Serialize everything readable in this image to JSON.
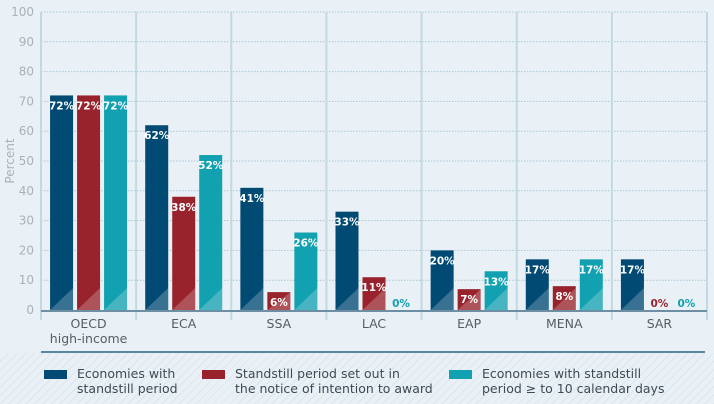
{
  "chart_data": {
    "type": "bar",
    "title": "",
    "xlabel": "",
    "ylabel": "Percent",
    "ylim": [
      0,
      100
    ],
    "yticks": [
      0,
      10,
      20,
      30,
      40,
      50,
      60,
      70,
      80,
      90,
      100
    ],
    "grid": true,
    "legend_position": "bottom",
    "categories": [
      "OECD\nhigh-income",
      "ECA",
      "SSA",
      "LAC",
      "EAP",
      "MENA",
      "SAR"
    ],
    "series": [
      {
        "name": "Economies with standstill period",
        "color": "#004a74",
        "label_color": "#ffffff",
        "values": [
          72,
          62,
          41,
          33,
          20,
          17,
          17
        ],
        "labels": [
          "72%",
          "62%",
          "41%",
          "33%",
          "20%",
          "17%",
          "17%"
        ]
      },
      {
        "name": "Standstill period set out in the notice of intention to award",
        "color": "#98232c",
        "label_color": "#98232c",
        "values": [
          72,
          38,
          6,
          11,
          7,
          8,
          0
        ],
        "labels": [
          "72%",
          "38%",
          "6%",
          "11%",
          "7%",
          "8%",
          "0%"
        ]
      },
      {
        "name": "Economies with standstill period ≥ to 10 calendar days",
        "color": "#12a1b0",
        "label_color": "#12a1b0",
        "values": [
          72,
          52,
          26,
          0,
          13,
          17,
          0
        ],
        "labels": [
          "72%",
          "52%",
          "26%",
          "0%",
          "13%",
          "17%",
          "0%"
        ]
      }
    ]
  },
  "legend": [
    {
      "label": "Economies with\nstandstill period",
      "color": "#004a74"
    },
    {
      "label": "Standstill period set out in\nthe notice of intention to award",
      "color": "#98232c"
    },
    {
      "label": "Economies with standstill\nperiod ≥ to 10 calendar days",
      "color": "#12a1b0"
    }
  ]
}
